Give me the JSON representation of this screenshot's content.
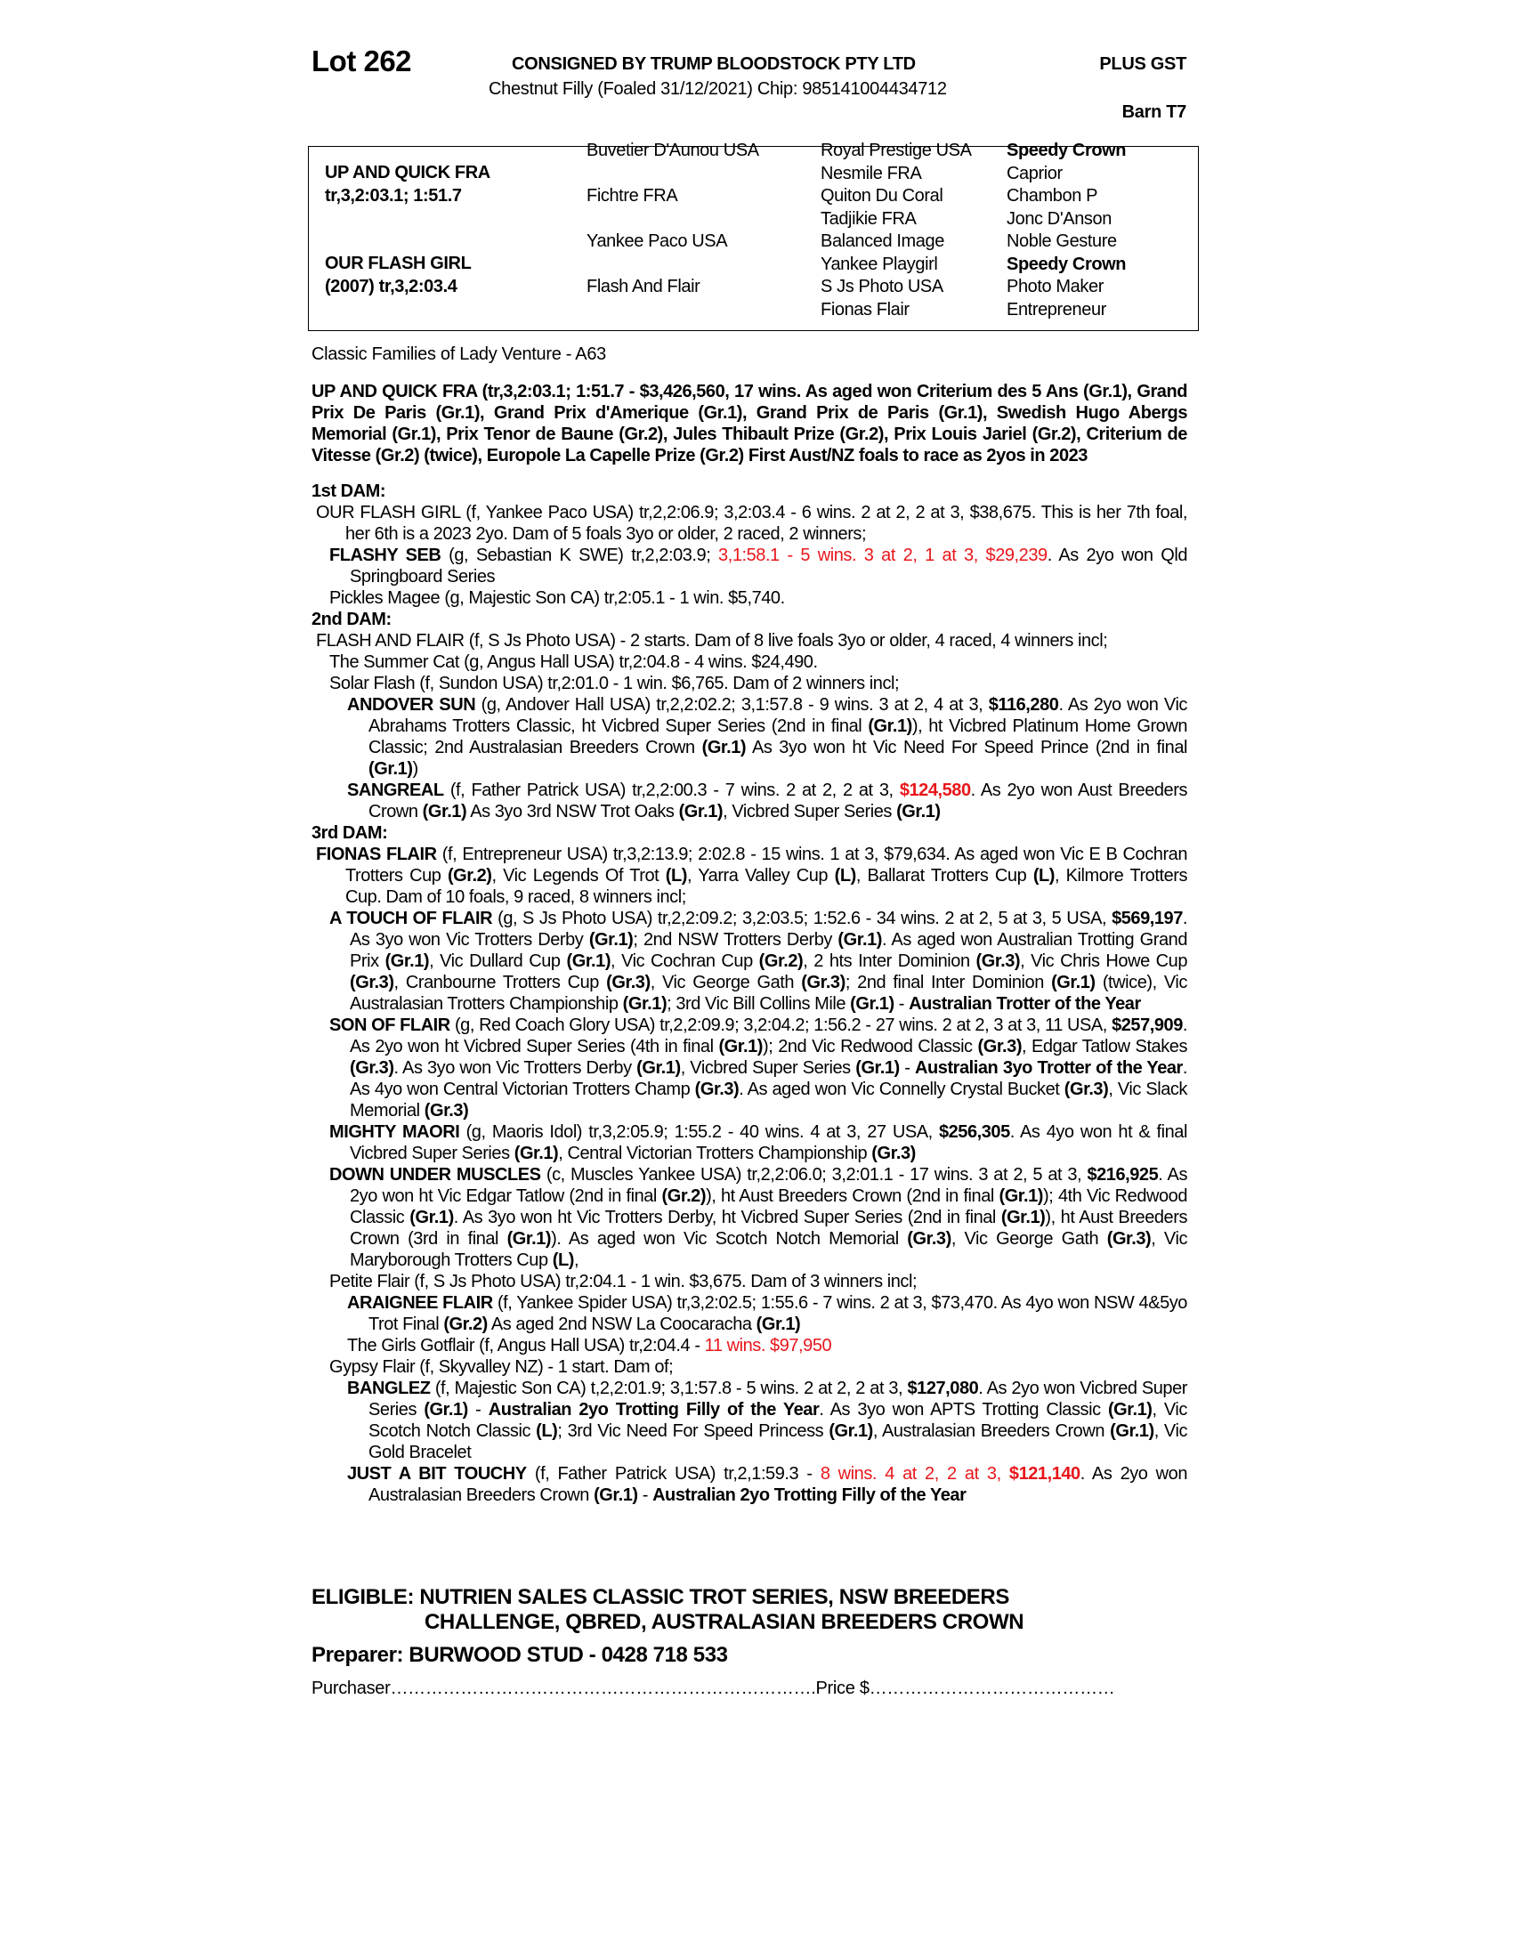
{
  "header": {
    "lot": "Lot 262",
    "consigned": "CONSIGNED BY TRUMP BLOODSTOCK PTY LTD",
    "plus_gst": "PLUS GST",
    "description": "Chestnut Filly (Foaled 31/12/2021) Chip: 985141004434712",
    "barn": "Barn T7"
  },
  "pedigree": {
    "sire_name": "UP AND QUICK FRA",
    "sire_record": "tr,3,2:03.1; 1:51.7",
    "dam_name": "OUR FLASH GIRL",
    "dam_record": "(2007) tr,3,2:03.4",
    "col2": [
      "Buvetier D'Aunou USA",
      "Fichtre FRA",
      "Yankee Paco USA",
      "Flash And Flair"
    ],
    "col3": [
      "Royal Prestige USA",
      "Nesmile FRA",
      "Quiton Du Coral",
      "Tadjikie FRA",
      "Balanced Image",
      "Yankee Playgirl",
      "S Js Photo USA",
      "Fionas Flair"
    ],
    "col4": [
      {
        "t": "Speedy Crown",
        "bold": true
      },
      {
        "t": "Caprior"
      },
      {
        "t": "Chambon P"
      },
      {
        "t": "Jonc D'Anson"
      },
      {
        "t": "Noble Gesture"
      },
      {
        "t": "Speedy Crown",
        "bold": true
      },
      {
        "t": "Photo Maker"
      },
      {
        "t": "Entrepreneur"
      }
    ]
  },
  "family": "Classic Families of Lady Venture - A63",
  "paragraphs": [
    {
      "cls": "sire",
      "runs": [
        [
          "UP AND QUICK FRA (tr,3,2:03.1; 1:51.7 - $3,426,560, 17 wins. As aged won Criterium des 5 Ans (Gr.1), Grand Prix De Paris (Gr.1), Grand Prix d'Amerique (Gr.1), Grand Prix de Paris (Gr.1), Swedish Hugo Abergs Memorial (Gr.1), Prix Tenor de Baune (Gr.2), Jules Thibault Prize (Gr.2), Prix Louis Jariel (Gr.2), Criterium de Vitesse (Gr.2) (twice), Europole La Capelle Prize (Gr.2) First Aust/NZ foals to race as 2yos in 2023",
          "b"
        ]
      ]
    },
    {
      "cls": "hd",
      "runs": [
        [
          "1st DAM:",
          "b"
        ]
      ]
    },
    {
      "cls": "l0",
      "runs": [
        [
          "OUR FLASH GIRL (f, Yankee Paco USA) tr,2,2:06.9; 3,2:03.4 - 6 wins. 2 at 2, 2 at 3, $38,675. This is her 7th foal, her 6th is a 2023 2yo. Dam of 5 foals 3yo or older, 2 raced, 2 winners;",
          ""
        ]
      ]
    },
    {
      "cls": "l1",
      "runs": [
        [
          "FLASHY SEB",
          "b"
        ],
        [
          " (g, Sebastian K SWE) tr,2,2:03.9; ",
          ""
        ],
        [
          "3,1:58.1 - 5 wins. 3 at 2, 1 at 3, $29,239",
          "r"
        ],
        [
          ". As 2yo won Qld Springboard Series",
          ""
        ]
      ]
    },
    {
      "cls": "l1",
      "runs": [
        [
          "Pickles Magee (g, Majestic Son CA) tr,2:05.1 - 1 win. $5,740.",
          ""
        ]
      ]
    },
    {
      "cls": "hd",
      "runs": [
        [
          "2nd DAM:",
          "b"
        ]
      ]
    },
    {
      "cls": "l0",
      "runs": [
        [
          "FLASH AND FLAIR (f, S Js Photo USA) - 2 starts. Dam of 8 live foals 3yo or older, 4 raced, 4 winners incl;",
          ""
        ]
      ]
    },
    {
      "cls": "l1",
      "runs": [
        [
          "The Summer Cat (g, Angus Hall USA) tr,2:04.8 - 4 wins. $24,490.",
          ""
        ]
      ]
    },
    {
      "cls": "l1",
      "runs": [
        [
          "Solar Flash (f, Sundon USA) tr,2:01.0 - 1 win. $6,765. Dam of 2 winners incl;",
          ""
        ]
      ]
    },
    {
      "cls": "l2",
      "runs": [
        [
          "ANDOVER SUN",
          "b"
        ],
        [
          " (g, Andover Hall USA) tr,2,2:02.2; 3,1:57.8 - 9 wins. 3 at 2, 4 at 3, ",
          ""
        ],
        [
          "$116,280",
          "b"
        ],
        [
          ". As 2yo won Vic Abrahams Trotters Classic, ht Vicbred Super Series (2nd in final ",
          ""
        ],
        [
          "(Gr.1)",
          "b"
        ],
        [
          "), ht Vicbred Platinum Home Grown Classic; 2nd Australasian Breeders Crown ",
          ""
        ],
        [
          "(Gr.1)",
          "b"
        ],
        [
          " As 3yo won ht Vic Need For Speed Prince (2nd in final ",
          ""
        ],
        [
          "(Gr.1)",
          "b"
        ],
        [
          ")",
          ""
        ]
      ]
    },
    {
      "cls": "l2",
      "runs": [
        [
          "SANGREAL",
          "b"
        ],
        [
          " (f, Father Patrick USA) tr,2,2:00.3 - 7 wins. 2 at 2, 2 at 3, ",
          ""
        ],
        [
          "$124,580",
          "rb"
        ],
        [
          ". As 2yo won Aust Breeders Crown ",
          ""
        ],
        [
          "(Gr.1)",
          "b"
        ],
        [
          " As 3yo 3rd NSW Trot Oaks ",
          ""
        ],
        [
          "(Gr.1)",
          "b"
        ],
        [
          ", Vicbred Super Series ",
          ""
        ],
        [
          "(Gr.1)",
          "b"
        ]
      ]
    },
    {
      "cls": "hd",
      "runs": [
        [
          "3rd DAM:",
          "b"
        ]
      ]
    },
    {
      "cls": "l0",
      "runs": [
        [
          "FIONAS FLAIR",
          "b"
        ],
        [
          " (f, Entrepreneur USA) tr,3,2:13.9; 2:02.8 - 15 wins. 1 at 3, $79,634. As aged won Vic E B Cochran Trotters Cup ",
          ""
        ],
        [
          "(Gr.2)",
          "b"
        ],
        [
          ", Vic Legends Of Trot ",
          ""
        ],
        [
          "(L)",
          "b"
        ],
        [
          ", Yarra Valley Cup ",
          ""
        ],
        [
          "(L)",
          "b"
        ],
        [
          ", Ballarat Trotters Cup ",
          ""
        ],
        [
          "(L)",
          "b"
        ],
        [
          ", Kilmore Trotters Cup. Dam of 10 foals, 9 raced, 8 winners incl;",
          ""
        ]
      ]
    },
    {
      "cls": "l1",
      "runs": [
        [
          "A TOUCH OF FLAIR",
          "b"
        ],
        [
          " (g, S Js Photo USA) tr,2,2:09.2; 3,2:03.5; 1:52.6 - 34 wins. 2 at 2, 5 at 3, 5 USA, ",
          ""
        ],
        [
          "$569,197",
          "b"
        ],
        [
          ". As 3yo won Vic Trotters Derby ",
          ""
        ],
        [
          "(Gr.1)",
          "b"
        ],
        [
          "; 2nd NSW Trotters Derby ",
          ""
        ],
        [
          "(Gr.1)",
          "b"
        ],
        [
          ". As aged won Australian Trotting Grand Prix ",
          ""
        ],
        [
          "(Gr.1)",
          "b"
        ],
        [
          ", Vic Dullard Cup ",
          ""
        ],
        [
          "(Gr.1)",
          "b"
        ],
        [
          ", Vic Cochran Cup ",
          ""
        ],
        [
          "(Gr.2)",
          "b"
        ],
        [
          ", 2 hts Inter Dominion ",
          ""
        ],
        [
          "(Gr.3)",
          "b"
        ],
        [
          ", Vic Chris Howe Cup ",
          ""
        ],
        [
          "(Gr.3)",
          "b"
        ],
        [
          ", Cranbourne Trotters Cup ",
          ""
        ],
        [
          "(Gr.3)",
          "b"
        ],
        [
          ", Vic George Gath ",
          ""
        ],
        [
          "(Gr.3)",
          "b"
        ],
        [
          "; 2nd final Inter Dominion ",
          ""
        ],
        [
          "(Gr.1)",
          "b"
        ],
        [
          " (twice), Vic Australasian Trotters Championship ",
          ""
        ],
        [
          "(Gr.1)",
          "b"
        ],
        [
          "; 3rd Vic Bill Collins Mile ",
          ""
        ],
        [
          "(Gr.1)",
          "b"
        ],
        [
          " - ",
          ""
        ],
        [
          "Australian Trotter of the Year",
          "b"
        ]
      ]
    },
    {
      "cls": "l1",
      "runs": [
        [
          "SON OF FLAIR",
          "b"
        ],
        [
          " (g, Red Coach Glory USA) tr,2,2:09.9; 3,2:04.2; 1:56.2 - 27 wins. 2 at 2, 3 at 3, 11 USA, ",
          ""
        ],
        [
          "$257,909",
          "b"
        ],
        [
          ". As 2yo won ht Vicbred Super Series (4th in final ",
          ""
        ],
        [
          "(Gr.1)",
          "b"
        ],
        [
          "); 2nd Vic Redwood Classic ",
          ""
        ],
        [
          "(Gr.3)",
          "b"
        ],
        [
          ", Edgar Tatlow Stakes ",
          ""
        ],
        [
          "(Gr.3)",
          "b"
        ],
        [
          ". As 3yo won Vic Trotters Derby ",
          ""
        ],
        [
          "(Gr.1)",
          "b"
        ],
        [
          ", Vicbred Super Series ",
          ""
        ],
        [
          "(Gr.1)",
          "b"
        ],
        [
          " - ",
          ""
        ],
        [
          "Australian 3yo Trotter of the Year",
          "b"
        ],
        [
          ". As 4yo won Central Victorian Trotters Champ ",
          ""
        ],
        [
          "(Gr.3)",
          "b"
        ],
        [
          ". As aged won Vic Connelly Crystal Bucket ",
          ""
        ],
        [
          "(Gr.3)",
          "b"
        ],
        [
          ", Vic Slack Memorial ",
          ""
        ],
        [
          "(Gr.3)",
          "b"
        ]
      ]
    },
    {
      "cls": "l1",
      "runs": [
        [
          "MIGHTY MAORI",
          "b"
        ],
        [
          " (g, Maoris Idol) tr,3,2:05.9; 1:55.2 - 40 wins. 4 at 3, 27 USA, ",
          ""
        ],
        [
          "$256,305",
          "b"
        ],
        [
          ". As 4yo won ht & final Vicbred Super Series ",
          ""
        ],
        [
          "(Gr.1)",
          "b"
        ],
        [
          ", Central Victorian Trotters Championship ",
          ""
        ],
        [
          "(Gr.3)",
          "b"
        ]
      ]
    },
    {
      "cls": "l1",
      "runs": [
        [
          "DOWN UNDER MUSCLES",
          "b"
        ],
        [
          " (c, Muscles Yankee USA) tr,2,2:06.0; 3,2:01.1 - 17 wins. 3 at 2, 5 at 3, ",
          ""
        ],
        [
          "$216,925",
          "b"
        ],
        [
          ". As 2yo won ht Vic Edgar Tatlow (2nd in final ",
          ""
        ],
        [
          "(Gr.2)",
          "b"
        ],
        [
          "), ht Aust Breeders Crown (2nd in final ",
          ""
        ],
        [
          "(Gr.1)",
          "b"
        ],
        [
          "); 4th Vic Redwood Classic ",
          ""
        ],
        [
          "(Gr.1)",
          "b"
        ],
        [
          ". As 3yo won ht Vic Trotters Derby, ht Vicbred Super Series (2nd in final ",
          ""
        ],
        [
          "(Gr.1)",
          "b"
        ],
        [
          "), ht Aust Breeders Crown (3rd in final ",
          ""
        ],
        [
          "(Gr.1)",
          "b"
        ],
        [
          "). As aged won Vic Scotch Notch Memorial ",
          ""
        ],
        [
          "(Gr.3)",
          "b"
        ],
        [
          ", Vic George Gath ",
          ""
        ],
        [
          "(Gr.3)",
          "b"
        ],
        [
          ", Vic Maryborough Trotters Cup ",
          ""
        ],
        [
          "(L)",
          "b"
        ],
        [
          ",",
          ""
        ]
      ]
    },
    {
      "cls": "l1",
      "runs": [
        [
          "Petite Flair (f, S Js Photo USA) tr,2:04.1 - 1 win. $3,675. Dam of 3 winners incl;",
          ""
        ]
      ]
    },
    {
      "cls": "l2",
      "runs": [
        [
          "ARAIGNEE FLAIR",
          "b"
        ],
        [
          " (f, Yankee Spider USA) tr,3,2:02.5; 1:55.6 - 7 wins. 2 at 3, $73,470. As 4yo won NSW 4&5yo Trot Final ",
          ""
        ],
        [
          "(Gr.2)",
          "b"
        ],
        [
          " As aged 2nd NSW La Coocaracha ",
          ""
        ],
        [
          "(Gr.1)",
          "b"
        ]
      ]
    },
    {
      "cls": "l2",
      "runs": [
        [
          "The Girls Gotflair (f, Angus Hall USA) tr,2:04.4 - ",
          ""
        ],
        [
          "11 wins. $97,950",
          "r"
        ]
      ]
    },
    {
      "cls": "l1",
      "runs": [
        [
          "Gypsy Flair (f, Skyvalley NZ) - 1 start. Dam of;",
          ""
        ]
      ]
    },
    {
      "cls": "l2",
      "runs": [
        [
          "BANGLEZ",
          "b"
        ],
        [
          " (f, Majestic Son CA) t,2,2:01.9; 3,1:57.8 - 5 wins. 2 at 2, 2 at 3, ",
          ""
        ],
        [
          "$127,080",
          "b"
        ],
        [
          ". As 2yo won Vicbred Super Series ",
          ""
        ],
        [
          "(Gr.1)",
          "b"
        ],
        [
          " - ",
          ""
        ],
        [
          "Australian 2yo Trotting Filly of the Year",
          "b"
        ],
        [
          ". As 3yo won APTS Trotting Classic ",
          ""
        ],
        [
          "(Gr.1)",
          "b"
        ],
        [
          ", Vic Scotch Notch Classic ",
          ""
        ],
        [
          "(L)",
          "b"
        ],
        [
          "; 3rd Vic Need For Speed Princess ",
          ""
        ],
        [
          "(Gr.1)",
          "b"
        ],
        [
          ", Australasian Breeders Crown ",
          ""
        ],
        [
          "(Gr.1)",
          "b"
        ],
        [
          ", Vic Gold Bracelet",
          ""
        ]
      ]
    },
    {
      "cls": "l2",
      "runs": [
        [
          "JUST A BIT TOUCHY",
          "b"
        ],
        [
          " (f, Father Patrick USA) tr,2,1:59.3 - ",
          ""
        ],
        [
          "8 wins. 4 at 2, 2 at 3, ",
          "r"
        ],
        [
          "$121,140",
          "rb"
        ],
        [
          ". As 2yo won Australasian Breeders Crown ",
          ""
        ],
        [
          "(Gr.1)",
          "b"
        ],
        [
          " - ",
          ""
        ],
        [
          "Australian 2yo Trotting Filly of the Year",
          "b"
        ]
      ]
    }
  ],
  "eligible": {
    "line1": "ELIGIBLE: NUTRIEN SALES CLASSIC TROT SERIES, NSW BREEDERS",
    "line2": "CHALLENGE, QBRED, AUSTRALASIAN BREEDERS CROWN"
  },
  "preparer": "Preparer: BURWOOD STUD - 0428 718 533",
  "purchaser": {
    "label": "Purchaser",
    "dots": "……………………………………………………………….",
    "price_label": "Price $",
    "price_dots": "……………………………………"
  },
  "colors": {
    "highlight": "#e8161b",
    "text": "#000000"
  }
}
